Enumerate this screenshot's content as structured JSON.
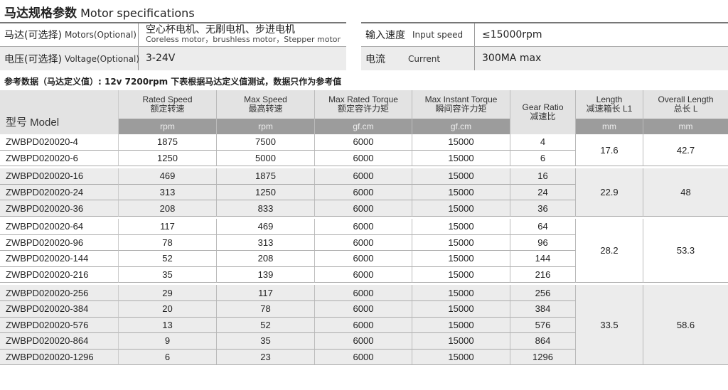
{
  "title": {
    "cn": "马达规格参数",
    "en": "Motor specifications"
  },
  "specs_left": [
    {
      "cn": "马达(可选择)",
      "en": "Motors(Optional)",
      "value": "空心杯电机、无刷电机、步进电机",
      "sub": "Coreless motor，brushless motor，Stepper motor"
    },
    {
      "cn": "电压(可选择)",
      "en": "Voltage(Optional)",
      "value": "3-24V"
    }
  ],
  "specs_right": [
    {
      "cn": "输入速度",
      "en": "Input speed",
      "value": "≤15000rpm"
    },
    {
      "cn": "电流",
      "en": "Current",
      "value": "300MA max"
    }
  ],
  "note": "参考数据（马达定义值）: 12v  7200rpm    下表根据马达定义值测试，数据只作为参考值",
  "table": {
    "model_header": "型号 Model",
    "headers": [
      {
        "en": "Rated Speed",
        "cn": "额定转速",
        "unit": "rpm"
      },
      {
        "en": "Max Speed",
        "cn": "最高转速",
        "unit": "rpm"
      },
      {
        "en": "Max Rated Torque",
        "cn": "额定容许力矩",
        "unit": "gf.cm"
      },
      {
        "en": "Max Instant Torque",
        "cn": "瞬间容许力矩",
        "unit": "gf.cm"
      },
      {
        "en": "Gear Ratio",
        "cn": "减速比"
      },
      {
        "en": "Length",
        "cn": "减速箱长 L1",
        "unit": "mm"
      },
      {
        "en": "Overall Length",
        "cn": "总长 L",
        "unit": "mm"
      }
    ],
    "groups": [
      {
        "length": "17.6",
        "overall": "42.7",
        "rows": [
          [
            "ZWBPD020020-4",
            "1875",
            "7500",
            "6000",
            "15000",
            "4"
          ],
          [
            "ZWBPD020020-6",
            "1250",
            "5000",
            "6000",
            "15000",
            "6"
          ]
        ]
      },
      {
        "length": "22.9",
        "overall": "48",
        "rows": [
          [
            "ZWBPD020020-16",
            "469",
            "1875",
            "6000",
            "15000",
            "16"
          ],
          [
            "ZWBPD020020-24",
            "313",
            "1250",
            "6000",
            "15000",
            "24"
          ],
          [
            "ZWBPD020020-36",
            "208",
            "833",
            "6000",
            "15000",
            "36"
          ]
        ]
      },
      {
        "length": "28.2",
        "overall": "53.3",
        "rows": [
          [
            "ZWBPD020020-64",
            "117",
            "469",
            "6000",
            "15000",
            "64"
          ],
          [
            "ZWBPD020020-96",
            "78",
            "313",
            "6000",
            "15000",
            "96"
          ],
          [
            "ZWBPD020020-144",
            "52",
            "208",
            "6000",
            "15000",
            "144"
          ],
          [
            "ZWBPD020020-216",
            "35",
            "139",
            "6000",
            "15000",
            "216"
          ]
        ]
      },
      {
        "length": "33.5",
        "overall": "58.6",
        "rows": [
          [
            "ZWBPD020020-256",
            "29",
            "117",
            "6000",
            "15000",
            "256"
          ],
          [
            "ZWBPD020020-384",
            "20",
            "78",
            "6000",
            "15000",
            "384"
          ],
          [
            "ZWBPD020020-576",
            "13",
            "52",
            "6000",
            "15000",
            "576"
          ],
          [
            "ZWBPD020020-864",
            "9",
            "35",
            "6000",
            "15000",
            "864"
          ],
          [
            "ZWBPD020020-1296",
            "6",
            "23",
            "6000",
            "15000",
            "1296"
          ]
        ]
      }
    ]
  }
}
